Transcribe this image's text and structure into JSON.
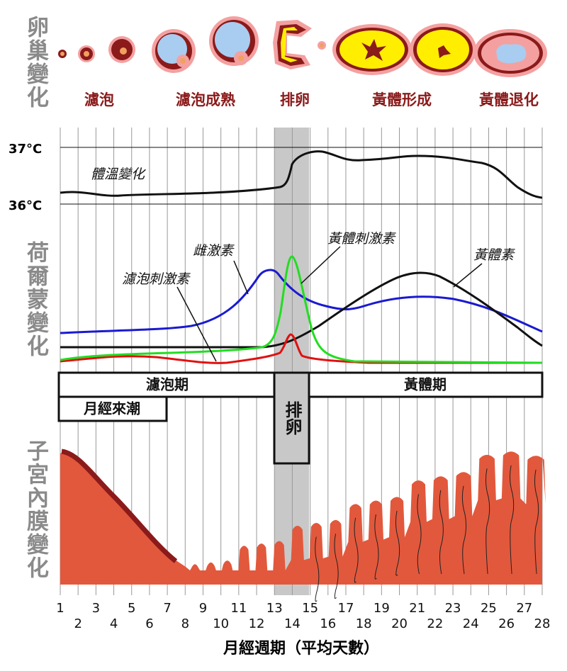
{
  "ovary": {
    "label": "卵巢變化",
    "stages": [
      "濾泡",
      "濾泡成熟",
      "排卵",
      "黃體形成",
      "黃體退化"
    ]
  },
  "temperature": {
    "ticks": [
      "37°C",
      "36°C"
    ],
    "curve_label": "體溫變化"
  },
  "hormones": {
    "label": "荷爾蒙變化",
    "curves": [
      "雌激素",
      "濾泡刺激素",
      "黃體刺激素",
      "黃體素"
    ]
  },
  "phases": {
    "follicular": "濾泡期",
    "ovulation": "排卵",
    "luteal": "黃體期",
    "menstruation": "月經來潮"
  },
  "endometrium": {
    "label": "子宮內膜變化"
  },
  "x_axis": {
    "days": [
      1,
      2,
      3,
      4,
      5,
      6,
      7,
      8,
      9,
      10,
      11,
      12,
      13,
      14,
      15,
      16,
      17,
      18,
      19,
      20,
      21,
      22,
      23,
      24,
      25,
      26,
      27,
      28
    ],
    "title": "月經週期（平均天數）"
  }
}
